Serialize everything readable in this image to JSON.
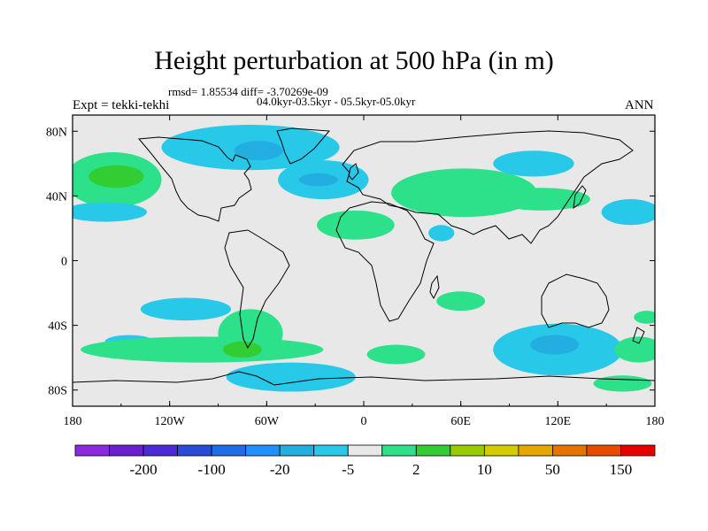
{
  "chart_data": {
    "type": "heatmap",
    "title": "Height perturbation at 500 hPa (in m)",
    "stats": "rmsd= 1.85534 diff= -3.70269e-09",
    "period": "04.0kyr-03.5kyr - 05.5kyr-05.0kyr",
    "experiment": "Expt = tekki-tekhi",
    "season": "ANN",
    "projection": "cylindrical equidistant",
    "xlim": [
      -180,
      180
    ],
    "ylim": [
      -90,
      90
    ],
    "x_ticks": [
      {
        "value": -180,
        "label": "180"
      },
      {
        "value": -120,
        "label": "120W"
      },
      {
        "value": -60,
        "label": "60W"
      },
      {
        "value": 0,
        "label": "0"
      },
      {
        "value": 60,
        "label": "60E"
      },
      {
        "value": 120,
        "label": "120E"
      },
      {
        "value": 180,
        "label": "180"
      }
    ],
    "y_ticks": [
      {
        "value": 80,
        "label": "80N"
      },
      {
        "value": 40,
        "label": "40N"
      },
      {
        "value": 0,
        "label": "0"
      },
      {
        "value": -40,
        "label": "40S"
      },
      {
        "value": -80,
        "label": "80S"
      }
    ],
    "colorbar": {
      "colors": [
        "#8a2be2",
        "#6a1fd0",
        "#4b2bd8",
        "#2a4bd8",
        "#1c6ee6",
        "#1e90ff",
        "#22aee0",
        "#27c8e8",
        "#e8e8e8",
        "#2de08a",
        "#32cd32",
        "#99cc00",
        "#d2cc00",
        "#e6a800",
        "#e67300",
        "#e84a00",
        "#e60000"
      ],
      "labels": [
        "-200",
        "-100",
        "-20",
        "-5",
        "2",
        "10",
        "50",
        "150"
      ],
      "label_after_box": [
        1,
        3,
        5,
        7,
        9,
        11,
        13,
        15
      ]
    },
    "anomalies": [
      {
        "name": "north-pacific-positive",
        "lon": -155,
        "lat": 50,
        "rlon": 30,
        "rlat": 17,
        "value": 3,
        "color": "#2de08a"
      },
      {
        "name": "north-pacific-core",
        "lon": -153,
        "lat": 52,
        "rlon": 17,
        "rlat": 7,
        "value": 10,
        "color": "#32cd32"
      },
      {
        "name": "north-pacific-negative",
        "lon": -160,
        "lat": 30,
        "rlon": 26,
        "rlat": 6,
        "value": -3,
        "color": "#27c8e8"
      },
      {
        "name": "arctic-canada-negative",
        "lon": -70,
        "lat": 70,
        "rlon": 55,
        "rlat": 14,
        "value": -3,
        "color": "#27c8e8"
      },
      {
        "name": "hudson-core",
        "lon": -65,
        "lat": 68,
        "rlon": 15,
        "rlat": 6,
        "value": -6,
        "color": "#22aee0"
      },
      {
        "name": "north-atlantic-negative",
        "lon": -25,
        "lat": 50,
        "rlon": 28,
        "rlat": 12,
        "value": -4,
        "color": "#27c8e8"
      },
      {
        "name": "north-atlantic-core",
        "lon": -28,
        "lat": 50,
        "rlon": 12,
        "rlat": 4,
        "value": -6,
        "color": "#22aee0"
      },
      {
        "name": "subtropical-atlantic-positive",
        "lon": -5,
        "lat": 22,
        "rlon": 24,
        "rlat": 9,
        "value": 3,
        "color": "#2de08a"
      },
      {
        "name": "europe-asia-positive",
        "lon": 62,
        "lat": 42,
        "rlon": 45,
        "rlat": 15,
        "value": 3,
        "color": "#2de08a"
      },
      {
        "name": "east-asia-positive",
        "lon": 110,
        "lat": 38,
        "rlon": 30,
        "rlat": 7,
        "value": 3,
        "color": "#2de08a"
      },
      {
        "name": "siberia-negative",
        "lon": 105,
        "lat": 60,
        "rlon": 25,
        "rlat": 8,
        "value": -3,
        "color": "#27c8e8"
      },
      {
        "name": "middle-east-negative",
        "lon": 48,
        "lat": 17,
        "rlon": 8,
        "rlat": 5,
        "value": -3,
        "color": "#27c8e8"
      },
      {
        "name": "north-pacific-east-negative",
        "lon": 165,
        "lat": 30,
        "rlon": 18,
        "rlat": 8,
        "value": -3,
        "color": "#27c8e8"
      },
      {
        "name": "south-pacific-negative",
        "lon": -110,
        "lat": -30,
        "rlon": 28,
        "rlat": 7,
        "value": -3,
        "color": "#27c8e8"
      },
      {
        "name": "south-pacific-2-negative",
        "lon": -145,
        "lat": -50,
        "rlon": 15,
        "rlat": 4,
        "value": -3,
        "color": "#27c8e8"
      },
      {
        "name": "south-pacific-positive",
        "lon": -100,
        "lat": -55,
        "rlon": 75,
        "rlat": 8,
        "value": 3,
        "color": "#2de08a"
      },
      {
        "name": "south-america-positive",
        "lon": -70,
        "lat": -45,
        "rlon": 20,
        "rlat": 15,
        "value": 4,
        "color": "#2de08a"
      },
      {
        "name": "patagonia-core",
        "lon": -75,
        "lat": -55,
        "rlon": 12,
        "rlat": 5,
        "value": 10,
        "color": "#32cd32"
      },
      {
        "name": "south-atlantic-negative",
        "lon": -45,
        "lat": -72,
        "rlon": 40,
        "rlat": 9,
        "value": -3,
        "color": "#27c8e8"
      },
      {
        "name": "south-indian-positive",
        "lon": 20,
        "lat": -58,
        "rlon": 18,
        "rlat": 6,
        "value": 3,
        "color": "#2de08a"
      },
      {
        "name": "south-indian-2-positive",
        "lon": 60,
        "lat": -25,
        "rlon": 15,
        "rlat": 6,
        "value": 3,
        "color": "#2de08a"
      },
      {
        "name": "southern-ocean-negative",
        "lon": 120,
        "lat": -55,
        "rlon": 40,
        "rlat": 16,
        "value": -4,
        "color": "#27c8e8"
      },
      {
        "name": "southern-ocean-core",
        "lon": 118,
        "lat": -52,
        "rlon": 15,
        "rlat": 6,
        "value": -7,
        "color": "#22aee0"
      },
      {
        "name": "tasman-positive",
        "lon": 170,
        "lat": -55,
        "rlon": 15,
        "rlat": 8,
        "value": 3,
        "color": "#2de08a"
      },
      {
        "name": "south-pacific-east-positive",
        "lon": 175,
        "lat": -35,
        "rlon": 8,
        "rlat": 4,
        "value": 3,
        "color": "#2de08a"
      },
      {
        "name": "southern-ocean-positive",
        "lon": 160,
        "lat": -76,
        "rlon": 18,
        "rlat": 5,
        "value": 3,
        "color": "#2de08a"
      }
    ]
  }
}
